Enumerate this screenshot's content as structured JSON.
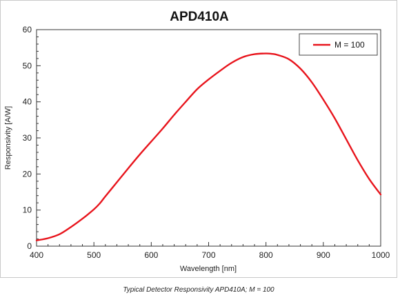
{
  "chart_data": {
    "type": "line",
    "title": "APD410A",
    "xlabel": "Wavelength [nm]",
    "ylabel": "Responsivity [A/W]",
    "xlim": [
      400,
      1000
    ],
    "ylim": [
      0,
      60
    ],
    "x_ticks": [
      "400",
      "500",
      "600",
      "700",
      "800",
      "900",
      "1000"
    ],
    "y_ticks": [
      "0",
      "10",
      "20",
      "30",
      "40",
      "50",
      "60"
    ],
    "grid": false,
    "legend_position": "top-right",
    "series": [
      {
        "name": "M = 100",
        "color": "#e8141c",
        "x": [
          400,
          420,
          440,
          460,
          480,
          500,
          510,
          520,
          540,
          560,
          580,
          600,
          620,
          640,
          660,
          680,
          700,
          720,
          740,
          760,
          780,
          800,
          810,
          820,
          840,
          860,
          880,
          900,
          920,
          940,
          960,
          980,
          1000
        ],
        "y": [
          1.6,
          2.2,
          3.3,
          5.3,
          7.6,
          10.2,
          11.8,
          13.8,
          17.7,
          21.6,
          25.4,
          29.0,
          32.6,
          36.4,
          40.0,
          43.5,
          46.2,
          48.6,
          50.8,
          52.4,
          53.2,
          53.4,
          53.3,
          53.0,
          51.8,
          49.2,
          45.4,
          40.6,
          35.4,
          29.6,
          23.8,
          18.6,
          14.3
        ]
      }
    ]
  },
  "caption": "Typical Detector Responsivity APD410A; M = 100"
}
